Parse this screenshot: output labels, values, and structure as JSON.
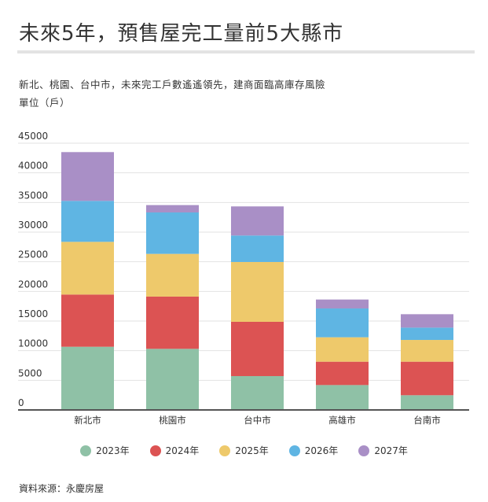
{
  "title": "未來5年，預售屋完工量前5大縣市",
  "subtitle": "新北、桃園、台中市，未來完工戶數遙遙領先，建商面臨高庫存風險",
  "unit": "單位（戶）",
  "source": "資料來源：永慶房屋",
  "chart_data": {
    "type": "bar",
    "stacked": true,
    "categories": [
      "新北市",
      "桃園市",
      "台中市",
      "高雄市",
      "台南市"
    ],
    "series": [
      {
        "name": "2023年",
        "color": "#8fc1a6",
        "values": [
          10660,
          10310,
          5710,
          4200,
          2480
        ]
      },
      {
        "name": "2024年",
        "color": "#dc5353",
        "values": [
          8810,
          8810,
          9160,
          3940,
          5660
        ]
      },
      {
        "name": "2025年",
        "color": "#eec96b",
        "values": [
          8890,
          7210,
          10090,
          4120,
          3670
        ]
      },
      {
        "name": "2026年",
        "color": "#5fb5e3",
        "values": [
          6910,
          6990,
          4470,
          4860,
          2080
        ]
      },
      {
        "name": "2027年",
        "color": "#a98fc6",
        "values": [
          8230,
          1240,
          4910,
          1510,
          2260
        ]
      }
    ],
    "yticks": [
      "0",
      "5000",
      "10000",
      "15000",
      "20000",
      "25000",
      "30000",
      "35000",
      "40000",
      "45000"
    ],
    "ylim": [
      0,
      45000
    ],
    "grid": true,
    "legend": "bottom"
  }
}
